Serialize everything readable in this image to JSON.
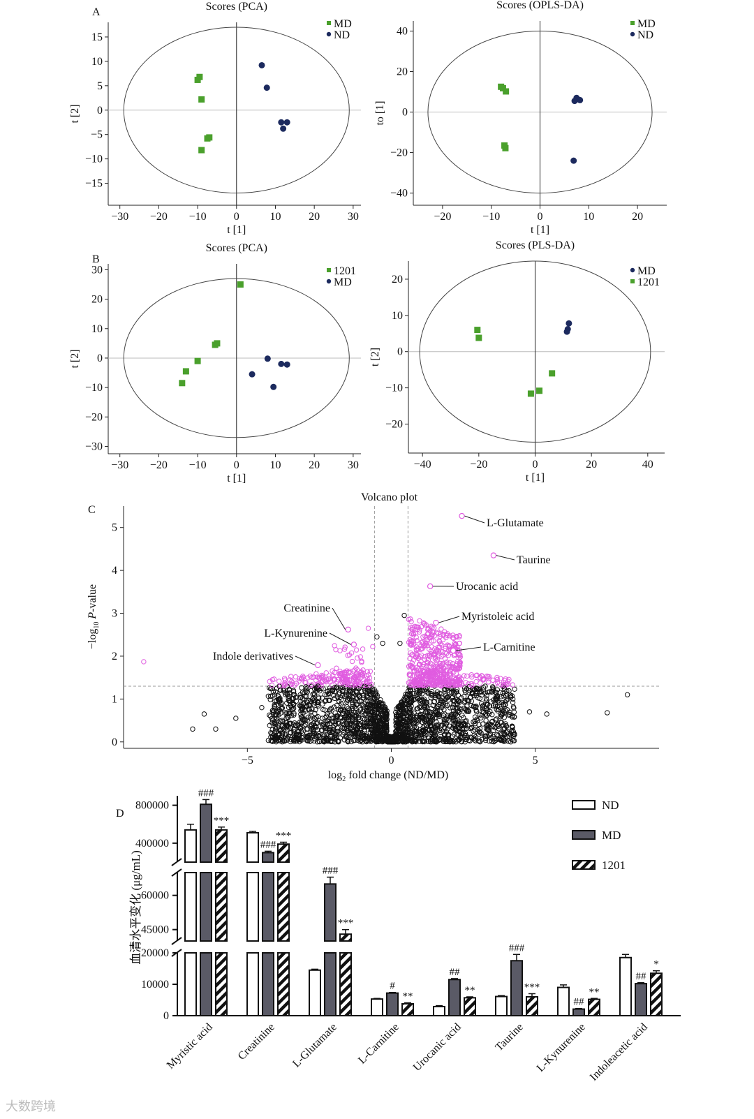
{
  "panel_labels": {
    "a": "A",
    "b": "B",
    "c": "C",
    "d": "D"
  },
  "watermark": "大数跨境",
  "colors": {
    "green": "#4aa02c",
    "navy": "#1c2a5e",
    "magenta": "#e05ce0",
    "black": "#111111",
    "gray": "#5a5a66"
  },
  "chart_data": [
    {
      "id": "A-left",
      "type": "scatter",
      "title": "Scores (PCA)",
      "xlabel": "t [1]",
      "ylabel": "t [2]",
      "xlim": [
        -33,
        32
      ],
      "ylim": [
        -19.5,
        18
      ],
      "xticks": [
        -30,
        -20,
        -10,
        0,
        10,
        20,
        30
      ],
      "yticks": [
        -15,
        -10,
        -5,
        0,
        5,
        10,
        15
      ],
      "ellipse": {
        "rx": 29,
        "ry": 17
      },
      "series": [
        {
          "name": "MD",
          "color": "#4aa02c",
          "marker": "square",
          "points": [
            [
              -10,
              6.2
            ],
            [
              -9.5,
              6.8
            ],
            [
              -9,
              2.2
            ],
            [
              -7.5,
              -5.8
            ],
            [
              -7,
              -5.6
            ],
            [
              -9,
              -8.2
            ]
          ]
        },
        {
          "name": "ND",
          "color": "#1c2a5e",
          "marker": "circle",
          "points": [
            [
              6.5,
              9.2
            ],
            [
              7.8,
              4.6
            ],
            [
              11.5,
              -2.5
            ],
            [
              13,
              -2.5
            ],
            [
              12,
              -3.8
            ]
          ]
        }
      ]
    },
    {
      "id": "A-right",
      "type": "scatter",
      "title": "Scores (OPLS-DA)",
      "xlabel": "t [1]",
      "ylabel": "to [1]",
      "xlim": [
        -26,
        26
      ],
      "ylim": [
        -46,
        45
      ],
      "xticks": [
        -20,
        -10,
        0,
        10,
        20
      ],
      "yticks": [
        -40,
        -20,
        0,
        20,
        40
      ],
      "ellipse": {
        "rx": 23,
        "ry": 40
      },
      "series": [
        {
          "name": "MD",
          "color": "#4aa02c",
          "marker": "square",
          "points": [
            [
              -8,
              12.5
            ],
            [
              -7.6,
              11.8
            ],
            [
              -7,
              10.2
            ],
            [
              -7.3,
              -16.5
            ],
            [
              -7.1,
              -17.8
            ]
          ]
        },
        {
          "name": "ND",
          "color": "#1c2a5e",
          "marker": "circle",
          "points": [
            [
              7.5,
              7
            ],
            [
              7.1,
              5.5
            ],
            [
              8.2,
              5.9
            ],
            [
              6.9,
              -24
            ]
          ]
        }
      ]
    },
    {
      "id": "B-left",
      "type": "scatter",
      "title": "Scores (PCA)",
      "xlabel": "t [1]",
      "ylabel": "t [2]",
      "xlim": [
        -33,
        32
      ],
      "ylim": [
        -32.5,
        32
      ],
      "xticks": [
        -30,
        -20,
        -10,
        0,
        10,
        20,
        30
      ],
      "yticks": [
        -30,
        -20,
        -10,
        0,
        10,
        20,
        30
      ],
      "ellipse": {
        "rx": 29,
        "ry": 27
      },
      "series": [
        {
          "name": "1201",
          "color": "#4aa02c",
          "marker": "square",
          "points": [
            [
              1,
              25
            ],
            [
              -5,
              5
            ],
            [
              -5.5,
              4.5
            ],
            [
              -10,
              -1
            ],
            [
              -13,
              -4.5
            ],
            [
              -14,
              -8.5
            ]
          ]
        },
        {
          "name": "MD",
          "color": "#1c2a5e",
          "marker": "circle",
          "points": [
            [
              8,
              -0.2
            ],
            [
              11.5,
              -2
            ],
            [
              13,
              -2.2
            ],
            [
              4,
              -5.5
            ],
            [
              9.5,
              -9.8
            ]
          ]
        }
      ]
    },
    {
      "id": "B-right",
      "type": "scatter",
      "title": "Scores (PLS-DA)",
      "xlabel": "t [1]",
      "ylabel": "t [2]",
      "xlim": [
        -45,
        46
      ],
      "ylim": [
        -28,
        25
      ],
      "xticks": [
        -40,
        -20,
        0,
        20,
        40
      ],
      "yticks": [
        -20,
        -10,
        0,
        10,
        20
      ],
      "ellipse": {
        "rx": 41,
        "ry": 25
      },
      "series": [
        {
          "name": "MD",
          "color": "#1c2a5e",
          "marker": "circle",
          "points": [
            [
              12,
              7.8
            ],
            [
              11.6,
              6.2
            ],
            [
              11.3,
              5.5
            ]
          ]
        },
        {
          "name": "1201",
          "color": "#4aa02c",
          "marker": "square",
          "points": [
            [
              -20.5,
              6
            ],
            [
              -20,
              3.8
            ],
            [
              6,
              -6
            ],
            [
              1.5,
              -10.8
            ],
            [
              -1.5,
              -11.6
            ]
          ]
        }
      ]
    },
    {
      "id": "C",
      "type": "scatter",
      "title": "Volcano plot",
      "xlabel_main": "log",
      "xlabel_sub": "2",
      "xlabel_rest": " fold change (ND/MD)",
      "ylabel_pre": "−log",
      "ylabel_sub": "10",
      "ylabel_p": "P",
      "ylabel_rest": "-value",
      "xlim": [
        -9.3,
        9.3
      ],
      "ylim": [
        -0.15,
        5.5
      ],
      "xticks": [
        -5,
        0,
        5
      ],
      "yticks": [
        0,
        1,
        2,
        3,
        4,
        5
      ],
      "thresholds": {
        "x": [
          -0.58,
          0.58
        ],
        "y": 1.3
      },
      "highlights": [
        {
          "x": 2.45,
          "y": 5.27,
          "label": "L-Glutamate"
        },
        {
          "x": 3.55,
          "y": 4.35,
          "label": "Taurine"
        },
        {
          "x": 1.35,
          "y": 3.63,
          "label": "Urocanic acid"
        },
        {
          "x": 1.55,
          "y": 2.78,
          "label": "Myristoleic acid"
        },
        {
          "x": -1.5,
          "y": 2.62,
          "label": "Creatinine"
        },
        {
          "x": 2.15,
          "y": 2.13,
          "label": "L-Carnitine"
        },
        {
          "x": -1.3,
          "y": 2.27,
          "label": "L-Kynurenine"
        },
        {
          "x": -2.55,
          "y": 1.79,
          "label": "Indole derivatives"
        }
      ]
    },
    {
      "id": "D",
      "type": "bar",
      "ylabel": "血清水平变化 (μg/mL)",
      "categories": [
        "Myristic acid",
        "Creatinine",
        "L-Glutamate",
        "L-Carnitine",
        "Urocanic acid",
        "Taurine",
        "L-Kynurenine",
        "Indoleacetic acid"
      ],
      "series": [
        {
          "name": "ND",
          "values": [
            540000,
            510000,
            14500,
            5300,
            2900,
            6100,
            9000,
            18500
          ]
        },
        {
          "name": "MD",
          "values": [
            810000,
            300000,
            65000,
            7200,
            11500,
            17500,
            2100,
            10200
          ]
        },
        {
          "name": "1201",
          "values": [
            540000,
            390000,
            43000,
            3800,
            5700,
            6000,
            5200,
            13500
          ]
        }
      ],
      "errors": [
        [
          60000,
          15000,
          300,
          200,
          300,
          300,
          800,
          1000
        ],
        [
          50000,
          15000,
          3000,
          200,
          300,
          2000,
          200,
          300
        ],
        [
          30000,
          20000,
          2000,
          300,
          300,
          1000,
          300,
          800
        ]
      ],
      "annotations": [
        [
          "",
          "",
          "",
          "",
          "",
          "",
          "",
          ""
        ],
        [
          "###",
          "###",
          "###",
          "#",
          "##",
          "###",
          "##",
          "##"
        ],
        [
          "***",
          "***",
          "***",
          "**",
          "**",
          "***",
          "**",
          "*"
        ]
      ],
      "yticks_segments": [
        {
          "range": [
            0,
            20000
          ],
          "ticks": [
            "0",
            "10000",
            "20000"
          ],
          "values": [
            0,
            10000,
            20000
          ]
        },
        {
          "range": [
            40000,
            70000
          ],
          "ticks": [
            "45000",
            "60000"
          ],
          "values": [
            45000,
            60000
          ]
        },
        {
          "range": [
            200000,
            900000
          ],
          "ticks": [
            "400000",
            "800000"
          ],
          "values": [
            400000,
            800000
          ]
        }
      ],
      "legend": [
        "ND",
        "MD",
        "1201"
      ]
    }
  ]
}
